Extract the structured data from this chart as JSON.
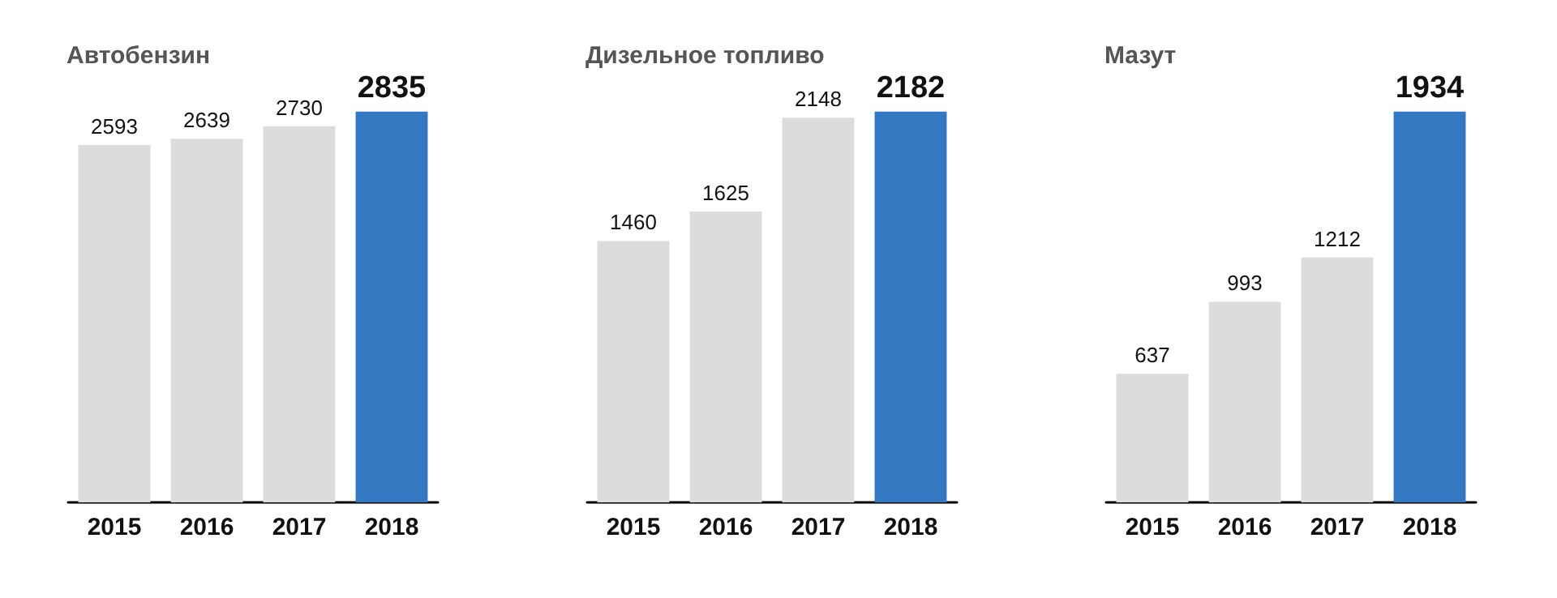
{
  "chart_data": [
    {
      "type": "bar",
      "title": "Автобензин",
      "categories": [
        "2015",
        "2016",
        "2017",
        "2018"
      ],
      "values": [
        2593,
        2639,
        2730,
        2835
      ],
      "colors": [
        "#dcdcdc",
        "#dcdcdc",
        "#dcdcdc",
        "#3379c1"
      ],
      "data_labels": true,
      "tick_labels": "x"
    },
    {
      "type": "bar",
      "title": "Дизельное топливо",
      "categories": [
        "2015",
        "2016",
        "2017",
        "2018"
      ],
      "values": [
        1460,
        1625,
        2148,
        2182
      ],
      "colors": [
        "#dcdcdc",
        "#dcdcdc",
        "#dcdcdc",
        "#3379c1"
      ],
      "data_labels": true,
      "tick_labels": "x"
    },
    {
      "type": "bar",
      "title": "Мазут",
      "categories": [
        "2015",
        "2016",
        "2017",
        "2018"
      ],
      "values": [
        637,
        993,
        1212,
        1934
      ],
      "colors": [
        "#dcdcdc",
        "#dcdcdc",
        "#dcdcdc",
        "#3379c1"
      ],
      "data_labels": true,
      "tick_labels": "x"
    }
  ]
}
